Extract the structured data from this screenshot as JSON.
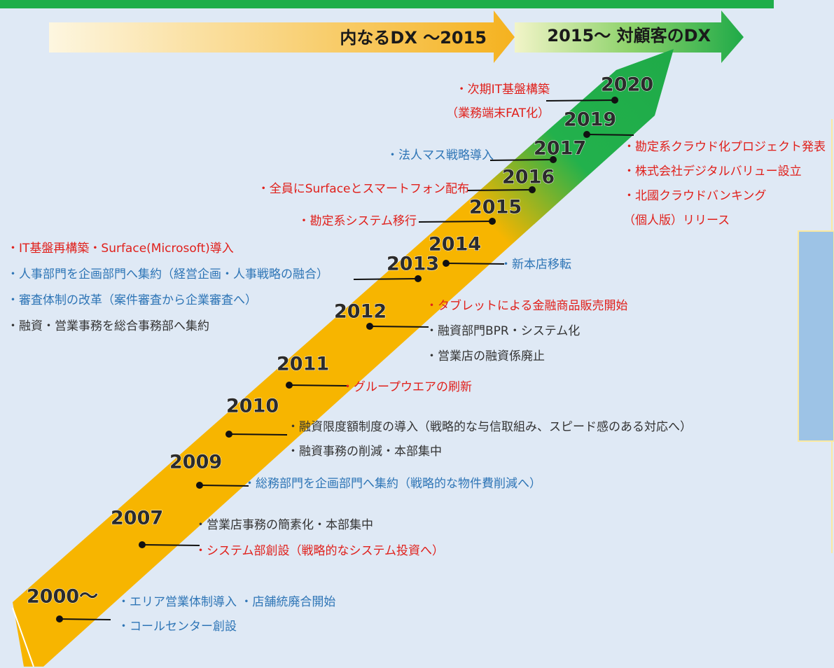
{
  "phases": [
    "内なるDX ～2015",
    "2015～ 対顧客のDX"
  ],
  "events": [
    {
      "year": "2020",
      "items": [
        {
          "text": "・次期IT基盤構築",
          "color": "#e0201b"
        },
        {
          "text": "（業務端末FAT化）",
          "color": "#e0201b"
        }
      ]
    },
    {
      "year": "2019",
      "items": [
        {
          "text": "・勘定系クラウド化プロジェクト発表",
          "color": "#e0201b"
        },
        {
          "text": "・株式会社デジタルバリュー設立",
          "color": "#e0201b"
        },
        {
          "text": "・北國クラウドバンキング",
          "color": "#e0201b"
        },
        {
          "text": "（個人版）リリース",
          "color": "#e0201b"
        }
      ]
    },
    {
      "year": "2017",
      "items": [
        {
          "text": "・法人マス戦略導入",
          "color": "#2e75b6"
        }
      ]
    },
    {
      "year": "2016",
      "items": [
        {
          "text": "・全員にSurfaceとスマートフォン配布",
          "color": "#e0201b"
        }
      ]
    },
    {
      "year": "2015",
      "items": [
        {
          "text": "・勘定系システム移行",
          "color": "#e0201b"
        }
      ]
    },
    {
      "year": "2014",
      "items": [
        {
          "text": "・新本店移転",
          "color": "#2e75b6"
        }
      ]
    },
    {
      "year": "2013",
      "items": [
        {
          "text": "・IT基盤再構築・Surface(Microsoft)導入",
          "color": "#e0201b"
        },
        {
          "text": "・人事部門を企画部門へ集約（経営企画・人事戦略の融合）",
          "color": "#2e75b6"
        },
        {
          "text": "・審査体制の改革（案件審査から企業審査へ）",
          "color": "#2e75b6"
        },
        {
          "text": "・融資・営業事務を総合事務部へ集約",
          "color": "#333333"
        }
      ]
    },
    {
      "year": "2012",
      "items": [
        {
          "text": "・タブレットによる金融商品販売開始",
          "color": "#e0201b"
        },
        {
          "text": "・融資部門BPR・システム化",
          "color": "#333333"
        },
        {
          "text": "・営業店の融資係廃止",
          "color": "#333333"
        }
      ]
    },
    {
      "year": "2011",
      "items": [
        {
          "text": "・グループウエアの刷新",
          "color": "#e0201b"
        }
      ]
    },
    {
      "year": "2010",
      "items": [
        {
          "text": "・融資限度額制度の導入（戦略的な与信取組み、スピード感のある対応へ）",
          "color": "#333333"
        },
        {
          "text": "・融資事務の削減・本部集中",
          "color": "#333333"
        }
      ]
    },
    {
      "year": "2009",
      "items": [
        {
          "text": "・総務部門を企画部門へ集約（戦略的な物件費削減へ）",
          "color": "#2e75b6"
        }
      ]
    },
    {
      "year": "2007",
      "items": [
        {
          "text": "・営業店事務の簡素化・本部集中",
          "color": "#333333"
        },
        {
          "text": "・システム部創設（戦略的なシステム投資へ）",
          "color": "#e0201b"
        }
      ]
    },
    {
      "year": "2000～",
      "items": [
        {
          "text": "・エリア営業体制導入 ・店舗統廃合開始",
          "color": "#2e75b6"
        },
        {
          "text": "・コールセンター創設",
          "color": "#2e75b6"
        }
      ]
    }
  ]
}
